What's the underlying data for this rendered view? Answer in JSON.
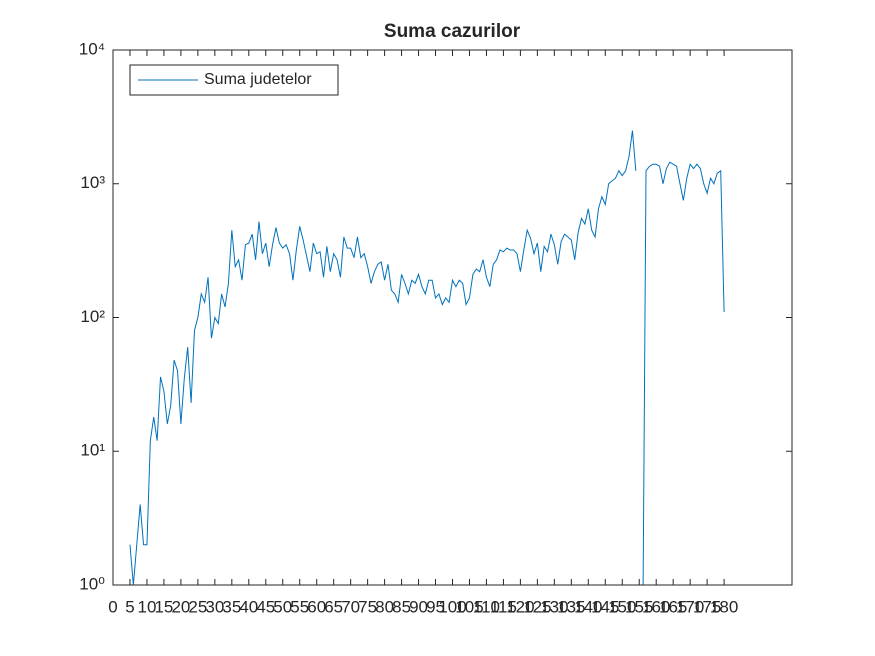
{
  "chart_data": {
    "type": "line",
    "title": "Suma cazurilor",
    "x": [
      5,
      6,
      7,
      8,
      9,
      10,
      11,
      12,
      13,
      14,
      15,
      16,
      17,
      18,
      19,
      20,
      21,
      22,
      23,
      24,
      25,
      26,
      27,
      28,
      29,
      30,
      31,
      32,
      33,
      34,
      35,
      36,
      37,
      38,
      39,
      40,
      41,
      42,
      43,
      44,
      45,
      46,
      47,
      48,
      49,
      50,
      51,
      52,
      53,
      54,
      55,
      56,
      57,
      58,
      59,
      60,
      61,
      62,
      63,
      64,
      65,
      66,
      67,
      68,
      69,
      70,
      71,
      72,
      73,
      74,
      75,
      76,
      77,
      78,
      79,
      80,
      81,
      82,
      83,
      84,
      85,
      86,
      87,
      88,
      89,
      90,
      91,
      92,
      93,
      94,
      95,
      96,
      97,
      98,
      99,
      100,
      101,
      102,
      103,
      104,
      105,
      106,
      107,
      108,
      109,
      110,
      111,
      112,
      113,
      114,
      115,
      116,
      117,
      118,
      119,
      120,
      121,
      122,
      123,
      124,
      125,
      126,
      127,
      128,
      129,
      130,
      131,
      132,
      133,
      134,
      135,
      136,
      137,
      138,
      139,
      140,
      141,
      142,
      143,
      144,
      145,
      146,
      147,
      148,
      149,
      150,
      151,
      152,
      153,
      154,
      155,
      156,
      157,
      158,
      159,
      160,
      161,
      162,
      163,
      164,
      165,
      166,
      167,
      168,
      169,
      170,
      171,
      172,
      173,
      174,
      175,
      176,
      177,
      178,
      179,
      180
    ],
    "series": [
      {
        "name": "Suma judetelor",
        "color": "#0072bd",
        "values": [
          2,
          1,
          2,
          4,
          2,
          2,
          12,
          18,
          12,
          36,
          28,
          16,
          22,
          48,
          40,
          16,
          35,
          60,
          23,
          80,
          100,
          150,
          130,
          200,
          70,
          100,
          90,
          150,
          120,
          180,
          450,
          240,
          270,
          190,
          350,
          360,
          420,
          270,
          520,
          300,
          360,
          240,
          350,
          470,
          360,
          330,
          350,
          300,
          190,
          320,
          480,
          380,
          290,
          220,
          360,
          300,
          310,
          200,
          340,
          220,
          300,
          270,
          200,
          400,
          330,
          330,
          280,
          400,
          280,
          300,
          240,
          180,
          220,
          250,
          260,
          190,
          250,
          160,
          150,
          130,
          210,
          180,
          150,
          190,
          180,
          210,
          170,
          150,
          190,
          190,
          140,
          150,
          125,
          140,
          130,
          190,
          170,
          190,
          180,
          125,
          140,
          210,
          230,
          220,
          270,
          200,
          170,
          250,
          270,
          320,
          310,
          330,
          320,
          320,
          300,
          220,
          320,
          450,
          390,
          300,
          360,
          220,
          340,
          310,
          420,
          350,
          250,
          370,
          420,
          400,
          380,
          270,
          430,
          550,
          500,
          650,
          450,
          400,
          650,
          800,
          700,
          1000,
          1050,
          1100,
          1250,
          1150,
          1250,
          1600,
          2500,
          1250,
          null,
          0.3,
          1250,
          1350,
          1400,
          1400,
          1350,
          1000,
          1300,
          1450,
          1400,
          1350,
          1000,
          750,
          1100,
          1400,
          1300,
          1400,
          1300,
          1000,
          850,
          1100,
          1000,
          1200,
          1250,
          110
        ]
      }
    ],
    "xlim": [
      0,
      200
    ],
    "xticks": [
      0,
      5,
      10,
      15,
      20,
      25,
      30,
      35,
      40,
      45,
      50,
      55,
      60,
      65,
      70,
      75,
      80,
      85,
      90,
      95,
      100,
      105,
      110,
      115,
      120,
      125,
      130,
      135,
      140,
      145,
      150,
      155,
      160,
      165,
      170,
      175,
      180
    ],
    "ylim": [
      1,
      10000
    ],
    "yscale": "log",
    "yticks": [
      {
        "value": 1,
        "label": "10⁰"
      },
      {
        "value": 10,
        "label": "10¹"
      },
      {
        "value": 100,
        "label": "10²"
      },
      {
        "value": 1000,
        "label": "10³"
      },
      {
        "value": 10000,
        "label": "10⁴"
      }
    ],
    "legend": "northwest"
  }
}
